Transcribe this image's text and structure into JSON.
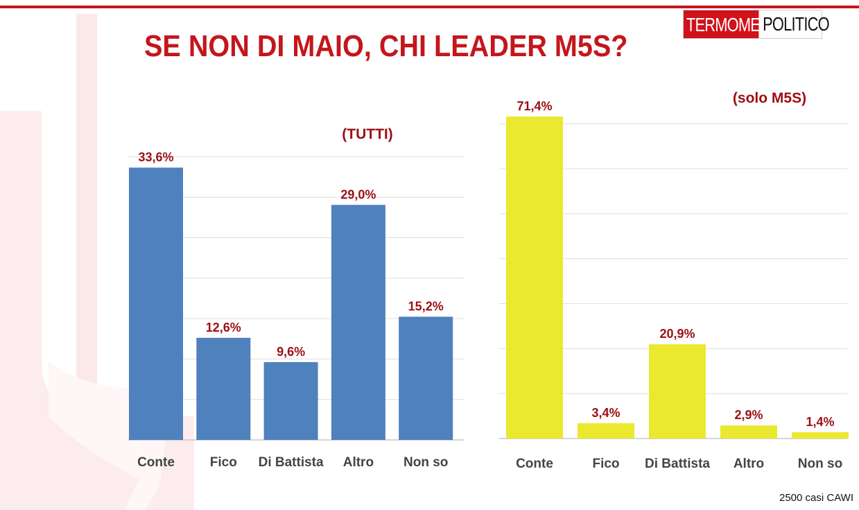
{
  "header": {
    "title": "SE NON DI MAIO, CHI LEADER M5S?",
    "logo_part1": "TERMOMETRO",
    "logo_part2": "POLITICO"
  },
  "footer": {
    "note": "2500 casi CAWI"
  },
  "colors": {
    "accent": "#c4161c",
    "label": "#9b0f14",
    "bar_left": "#4f81bd",
    "bar_right": "#ebe830"
  },
  "chart_data": [
    {
      "type": "bar",
      "subtitle": "(TUTTI)",
      "categories": [
        "Conte",
        "Fico",
        "Di Battista",
        "Altro",
        "Non so"
      ],
      "values": [
        33.6,
        12.6,
        9.6,
        29.0,
        15.2
      ],
      "labels": [
        "33,6%",
        "12,6%",
        "9,6%",
        "29,0%",
        "15,2%"
      ],
      "unit": "%",
      "grid": true,
      "ylim": [
        0,
        35
      ],
      "color": "#4f81bd"
    },
    {
      "type": "bar",
      "subtitle": "(solo M5S)",
      "categories": [
        "Conte",
        "Fico",
        "Di Battista",
        "Altro",
        "Non so"
      ],
      "values": [
        71.4,
        3.4,
        20.9,
        2.9,
        1.4
      ],
      "labels": [
        "71,4%",
        "3,4%",
        "20,9%",
        "2,9%",
        "1,4%"
      ],
      "unit": "%",
      "grid": true,
      "ylim": [
        0,
        70
      ],
      "color": "#ebe830"
    }
  ]
}
